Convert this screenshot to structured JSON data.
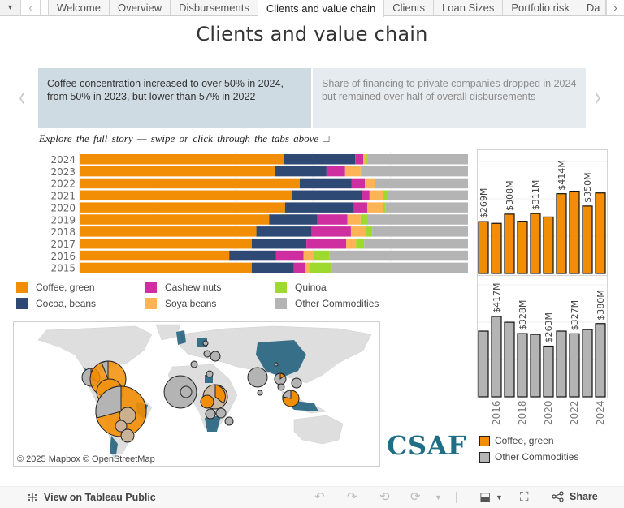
{
  "tabbar": {
    "menu_icon": "▾",
    "prev_icon": "‹",
    "next_icon": "›",
    "tabs": [
      {
        "label": "Welcome",
        "active": false
      },
      {
        "label": "Overview",
        "active": false
      },
      {
        "label": "Disbursements",
        "active": false
      },
      {
        "label": "Clients and value chain",
        "active": true
      },
      {
        "label": "Clients",
        "active": false
      },
      {
        "label": "Loan Sizes",
        "active": false
      },
      {
        "label": "Portfolio risk",
        "active": false
      },
      {
        "label": "Da",
        "active": false
      }
    ]
  },
  "title": "Clients and value chain",
  "story": {
    "prev_icon": "‹",
    "next_icon": "›",
    "points": [
      {
        "text": "Coffee concentration increased to over 50% in 2024, from 50% in 2023, but lower than 57% in 2022",
        "active": true
      },
      {
        "text": "Share of financing to private companies dropped in 2024 but remained over half of overall disbursements",
        "active": false
      }
    ]
  },
  "subtitle": "Explore the full story — swipe or click through the tabs above □",
  "colors": {
    "coffee": "#f28e05",
    "cocoa": "#2e4a74",
    "cashew": "#cf2ea1",
    "soya": "#fdb356",
    "quinoa": "#9ed92d",
    "other": "#b4b4b4",
    "brand": "#1f6e86",
    "china_fill": "#0a4d66"
  },
  "legend": [
    {
      "label": "Coffee, green",
      "key": "coffee"
    },
    {
      "label": "Cocoa, beans",
      "key": "cocoa"
    },
    {
      "label": "Cashew nuts",
      "key": "cashew"
    },
    {
      "label": "Soya beans",
      "key": "soya"
    },
    {
      "label": "Quinoa",
      "key": "quinoa"
    },
    {
      "label": "Other Commodities",
      "key": "other"
    }
  ],
  "chart_data": [
    {
      "type": "bar",
      "orientation": "horizontal-stacked-100%",
      "title": "",
      "categories": [
        "2024",
        "2023",
        "2022",
        "2021",
        "2020",
        "2019",
        "2018",
        "2017",
        "2016",
        "2015"
      ],
      "xlim": [
        0,
        100
      ],
      "unit": "% of disbursements",
      "series": [
        {
          "name": "Coffee, green",
          "key": "coffee",
          "values": [
            52.4,
            50.1,
            56.6,
            54.7,
            52.8,
            48.7,
            45.4,
            44.2,
            38.4,
            44.2
          ]
        },
        {
          "name": "Cocoa, beans",
          "key": "cocoa",
          "values": [
            18.5,
            13.4,
            13.4,
            18.0,
            17.8,
            12.4,
            14.3,
            14.1,
            12.1,
            10.9
          ]
        },
        {
          "name": "Cashew nuts",
          "key": "cashew",
          "values": [
            2.1,
            4.8,
            3.4,
            1.9,
            3.4,
            7.8,
            10.1,
            10.3,
            7.1,
            2.9
          ]
        },
        {
          "name": "Soya beans",
          "key": "soya",
          "values": [
            0.8,
            4.0,
            2.7,
            3.6,
            4.0,
            3.4,
            3.8,
            2.5,
            2.7,
            1.3
          ]
        },
        {
          "name": "Quinoa",
          "key": "quinoa",
          "values": [
            0.4,
            0.2,
            0.2,
            1.1,
            0.8,
            1.7,
            1.7,
            2.1,
            4.0,
            5.5
          ]
        },
        {
          "name": "Other Commodities",
          "key": "other",
          "values": [
            25.8,
            27.5,
            23.7,
            20.7,
            21.2,
            26.0,
            24.7,
            26.8,
            35.7,
            35.2
          ]
        }
      ]
    },
    {
      "type": "bar",
      "title": "Coffee, green disbursements",
      "categories": [
        "2015",
        "2016",
        "2017",
        "2018",
        "2019",
        "2020",
        "2021",
        "2022",
        "2023",
        "2024"
      ],
      "values": [
        269,
        260,
        308,
        271,
        311,
        293,
        414,
        427,
        350,
        418
      ],
      "unit": "$M",
      "data_labels": {
        "2015": "$269M",
        "2017": "$308M",
        "2019": "$311M",
        "2021": "$414M",
        "2023": "$350M"
      },
      "ylim": [
        0,
        600
      ]
    },
    {
      "type": "bar",
      "title": "Other Commodities disbursements",
      "categories": [
        "2015",
        "2016",
        "2017",
        "2018",
        "2019",
        "2020",
        "2021",
        "2022",
        "2023",
        "2024"
      ],
      "values": [
        341,
        417,
        387,
        328,
        324,
        263,
        341,
        327,
        349,
        380
      ],
      "unit": "$M",
      "data_labels": {
        "2016": "$417M",
        "2018": "$328M",
        "2020": "$263M",
        "2022": "$327M",
        "2024": "$380M"
      },
      "xtick_labels": [
        "2016",
        "2018",
        "2020",
        "2022",
        "2024"
      ],
      "ylim": [
        0,
        600
      ]
    }
  ],
  "map": {
    "attribution": "© 2025 Mapbox  © OpenStreetMap"
  },
  "logo": "CSAF",
  "legend2": [
    {
      "label": "Coffee, green",
      "key": "coffee"
    },
    {
      "label": "Other Commodities",
      "key": "other"
    }
  ],
  "toolbar": {
    "view_on_public": "View on Tableau Public",
    "share": "Share"
  }
}
